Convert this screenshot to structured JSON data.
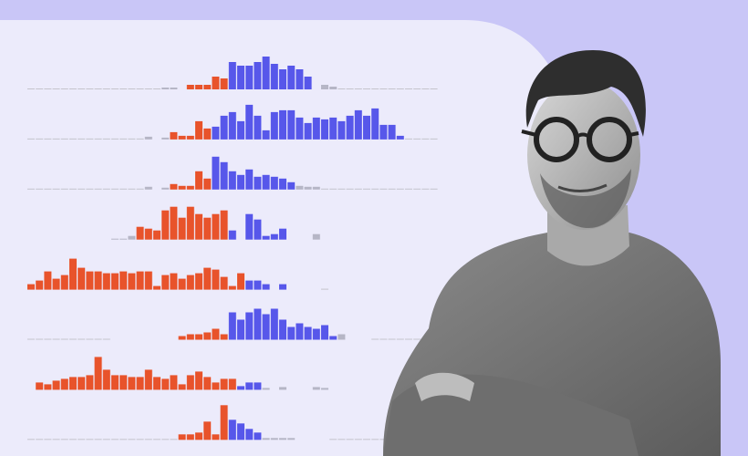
{
  "palette": {
    "o": "#e8532b",
    "b": "#5757ea",
    "g": "#b6b6c6"
  },
  "rows": [
    {
      "bars": [
        0,
        0,
        0,
        0,
        0,
        0,
        0,
        0,
        0,
        0,
        0,
        0,
        0,
        0,
        0,
        0,
        [
          2,
          "g"
        ],
        [
          2,
          "g"
        ],
        null,
        [
          5,
          "o"
        ],
        [
          5,
          "o"
        ],
        [
          5,
          "o"
        ],
        [
          14,
          "o"
        ],
        [
          12,
          "o"
        ],
        [
          30,
          "b"
        ],
        [
          26,
          "b"
        ],
        [
          26,
          "b"
        ],
        [
          30,
          "b"
        ],
        [
          36,
          "b"
        ],
        [
          28,
          "b"
        ],
        [
          22,
          "b"
        ],
        [
          26,
          "b"
        ],
        [
          22,
          "b"
        ],
        [
          14,
          "b"
        ],
        null,
        [
          5,
          "g"
        ],
        [
          3,
          "g"
        ],
        0,
        0,
        0,
        0,
        0,
        0,
        0,
        0,
        0,
        0,
        0,
        0
      ]
    },
    {
      "bars": [
        0,
        0,
        0,
        0,
        0,
        0,
        0,
        0,
        0,
        0,
        0,
        0,
        0,
        0,
        [
          3,
          "g"
        ],
        null,
        [
          2,
          "g"
        ],
        [
          8,
          "o"
        ],
        [
          4,
          "o"
        ],
        [
          4,
          "o"
        ],
        [
          20,
          "o"
        ],
        [
          12,
          "o"
        ],
        [
          14,
          "b"
        ],
        [
          26,
          "b"
        ],
        [
          30,
          "b"
        ],
        [
          20,
          "b"
        ],
        [
          38,
          "b"
        ],
        [
          26,
          "b"
        ],
        [
          10,
          "b"
        ],
        [
          30,
          "b"
        ],
        [
          32,
          "b"
        ],
        [
          32,
          "b"
        ],
        [
          24,
          "b"
        ],
        [
          18,
          "b"
        ],
        [
          24,
          "b"
        ],
        [
          22,
          "b"
        ],
        [
          24,
          "b"
        ],
        [
          20,
          "b"
        ],
        [
          26,
          "b"
        ],
        [
          32,
          "b"
        ],
        [
          26,
          "b"
        ],
        [
          34,
          "b"
        ],
        [
          16,
          "b"
        ],
        [
          16,
          "b"
        ],
        [
          4,
          "b"
        ],
        0,
        0,
        0,
        0
      ]
    },
    {
      "bars": [
        0,
        0,
        0,
        0,
        0,
        0,
        0,
        0,
        0,
        0,
        0,
        0,
        0,
        0,
        [
          3,
          "g"
        ],
        null,
        [
          2,
          "g"
        ],
        [
          6,
          "o"
        ],
        [
          4,
          "o"
        ],
        [
          4,
          "o"
        ],
        [
          20,
          "o"
        ],
        [
          12,
          "o"
        ],
        [
          36,
          "b"
        ],
        [
          30,
          "b"
        ],
        [
          20,
          "b"
        ],
        [
          16,
          "b"
        ],
        [
          22,
          "b"
        ],
        [
          14,
          "b"
        ],
        [
          16,
          "b"
        ],
        [
          14,
          "b"
        ],
        [
          12,
          "b"
        ],
        [
          8,
          "b"
        ],
        [
          4,
          "g"
        ],
        [
          3,
          "g"
        ],
        [
          3,
          "g"
        ],
        0,
        0,
        0,
        0,
        0,
        0,
        0,
        0,
        0,
        0,
        0,
        0,
        0,
        0
      ]
    },
    {
      "bars": [
        null,
        null,
        null,
        null,
        null,
        null,
        null,
        null,
        null,
        null,
        [
          1,
          "g"
        ],
        [
          1,
          "g"
        ],
        [
          4,
          "g"
        ],
        [
          14,
          "o"
        ],
        [
          12,
          "o"
        ],
        [
          10,
          "o"
        ],
        [
          32,
          "o"
        ],
        [
          36,
          "o"
        ],
        [
          24,
          "o"
        ],
        [
          36,
          "o"
        ],
        [
          28,
          "o"
        ],
        [
          24,
          "o"
        ],
        [
          28,
          "o"
        ],
        [
          32,
          "o"
        ],
        [
          10,
          "b"
        ],
        null,
        [
          28,
          "b"
        ],
        [
          22,
          "b"
        ],
        [
          4,
          "b"
        ],
        [
          6,
          "b"
        ],
        [
          12,
          "b"
        ],
        null,
        null,
        null,
        [
          6,
          "g"
        ],
        null,
        null,
        null,
        null,
        null,
        null,
        null,
        null,
        null,
        null,
        null,
        null,
        null,
        null
      ]
    },
    {
      "bars": [
        [
          6,
          "o"
        ],
        [
          10,
          "o"
        ],
        [
          20,
          "o"
        ],
        [
          12,
          "o"
        ],
        [
          16,
          "o"
        ],
        [
          34,
          "o"
        ],
        [
          24,
          "o"
        ],
        [
          20,
          "o"
        ],
        [
          20,
          "o"
        ],
        [
          18,
          "o"
        ],
        [
          18,
          "o"
        ],
        [
          20,
          "o"
        ],
        [
          18,
          "o"
        ],
        [
          20,
          "o"
        ],
        [
          20,
          "o"
        ],
        [
          4,
          "o"
        ],
        [
          16,
          "o"
        ],
        [
          18,
          "o"
        ],
        [
          12,
          "o"
        ],
        [
          16,
          "o"
        ],
        [
          18,
          "o"
        ],
        [
          24,
          "o"
        ],
        [
          22,
          "o"
        ],
        [
          14,
          "o"
        ],
        [
          4,
          "o"
        ],
        [
          18,
          "o"
        ],
        [
          10,
          "b"
        ],
        [
          10,
          "b"
        ],
        [
          6,
          "b"
        ],
        null,
        [
          6,
          "b"
        ],
        null,
        null,
        null,
        null,
        0,
        null,
        null,
        null,
        null,
        null,
        null,
        null,
        null,
        null,
        null,
        null,
        null,
        null
      ]
    },
    {
      "bars": [
        0,
        0,
        0,
        0,
        0,
        0,
        0,
        0,
        0,
        0,
        null,
        null,
        null,
        null,
        null,
        null,
        null,
        null,
        [
          4,
          "o"
        ],
        [
          6,
          "o"
        ],
        [
          6,
          "o"
        ],
        [
          8,
          "o"
        ],
        [
          12,
          "o"
        ],
        [
          6,
          "o"
        ],
        [
          30,
          "b"
        ],
        [
          22,
          "b"
        ],
        [
          30,
          "b"
        ],
        [
          34,
          "b"
        ],
        [
          28,
          "b"
        ],
        [
          34,
          "b"
        ],
        [
          22,
          "b"
        ],
        [
          14,
          "b"
        ],
        [
          18,
          "b"
        ],
        [
          14,
          "b"
        ],
        [
          12,
          "b"
        ],
        [
          16,
          "b"
        ],
        [
          4,
          "b"
        ],
        [
          6,
          "g"
        ],
        null,
        null,
        null,
        0,
        0,
        0,
        0,
        0,
        0,
        0,
        0
      ]
    },
    {
      "bars": [
        null,
        [
          8,
          "o"
        ],
        [
          6,
          "o"
        ],
        [
          10,
          "o"
        ],
        [
          12,
          "o"
        ],
        [
          14,
          "o"
        ],
        [
          14,
          "o"
        ],
        [
          16,
          "o"
        ],
        [
          36,
          "o"
        ],
        [
          22,
          "o"
        ],
        [
          16,
          "o"
        ],
        [
          16,
          "o"
        ],
        [
          14,
          "o"
        ],
        [
          14,
          "o"
        ],
        [
          22,
          "o"
        ],
        [
          14,
          "o"
        ],
        [
          12,
          "o"
        ],
        [
          16,
          "o"
        ],
        [
          6,
          "o"
        ],
        [
          16,
          "o"
        ],
        [
          20,
          "o"
        ],
        [
          14,
          "o"
        ],
        [
          8,
          "o"
        ],
        [
          12,
          "o"
        ],
        [
          12,
          "o"
        ],
        [
          4,
          "b"
        ],
        [
          8,
          "b"
        ],
        [
          8,
          "b"
        ],
        [
          2,
          "g"
        ],
        null,
        [
          3,
          "g"
        ],
        null,
        null,
        null,
        [
          3,
          "g"
        ],
        [
          2,
          "g"
        ],
        null,
        null,
        null,
        null,
        null,
        null,
        null,
        null,
        null,
        null,
        null,
        null,
        null
      ]
    },
    {
      "bars": [
        0,
        0,
        0,
        0,
        0,
        0,
        0,
        0,
        0,
        0,
        0,
        0,
        0,
        0,
        0,
        0,
        0,
        0,
        [
          6,
          "o"
        ],
        [
          6,
          "o"
        ],
        [
          8,
          "o"
        ],
        [
          20,
          "o"
        ],
        [
          6,
          "o"
        ],
        [
          38,
          "o"
        ],
        [
          22,
          "b"
        ],
        [
          18,
          "b"
        ],
        [
          12,
          "b"
        ],
        [
          8,
          "b"
        ],
        [
          2,
          "g"
        ],
        [
          2,
          "g"
        ],
        [
          2,
          "g"
        ],
        [
          2,
          "g"
        ],
        null,
        null,
        null,
        null,
        0,
        0,
        0,
        0,
        0,
        0,
        0,
        0,
        0,
        0,
        0,
        0,
        0
      ]
    }
  ]
}
